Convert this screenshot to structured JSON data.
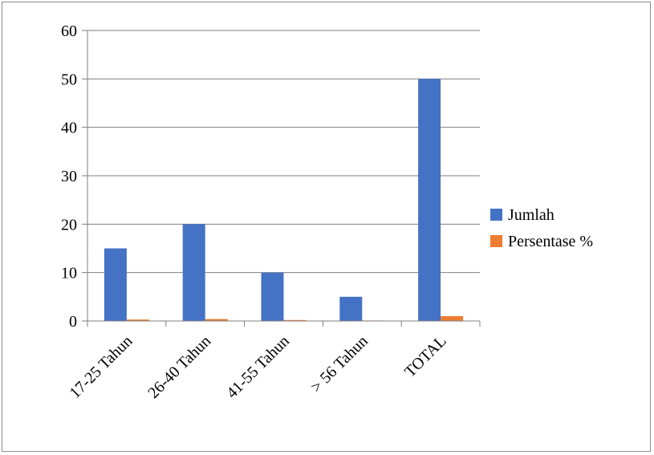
{
  "chart_data": {
    "type": "bar",
    "title": "",
    "xlabel": "",
    "ylabel": "",
    "ylim": [
      0,
      60
    ],
    "yticks": [
      0,
      10,
      20,
      30,
      40,
      50,
      60
    ],
    "grid": true,
    "legend_position": "right",
    "categories": [
      "17-25 Tahun",
      "26-40 Tahun",
      "41-55 Tahun",
      "> 56 Tahun",
      "TOTAL"
    ],
    "series": [
      {
        "name": "Jumlah",
        "color": "#4472C4",
        "values": [
          15,
          20,
          10,
          5,
          50
        ]
      },
      {
        "name": "Persentase %",
        "color": "#ED7D31",
        "values": [
          0.3,
          0.4,
          0.2,
          0.1,
          1.0
        ]
      }
    ]
  }
}
